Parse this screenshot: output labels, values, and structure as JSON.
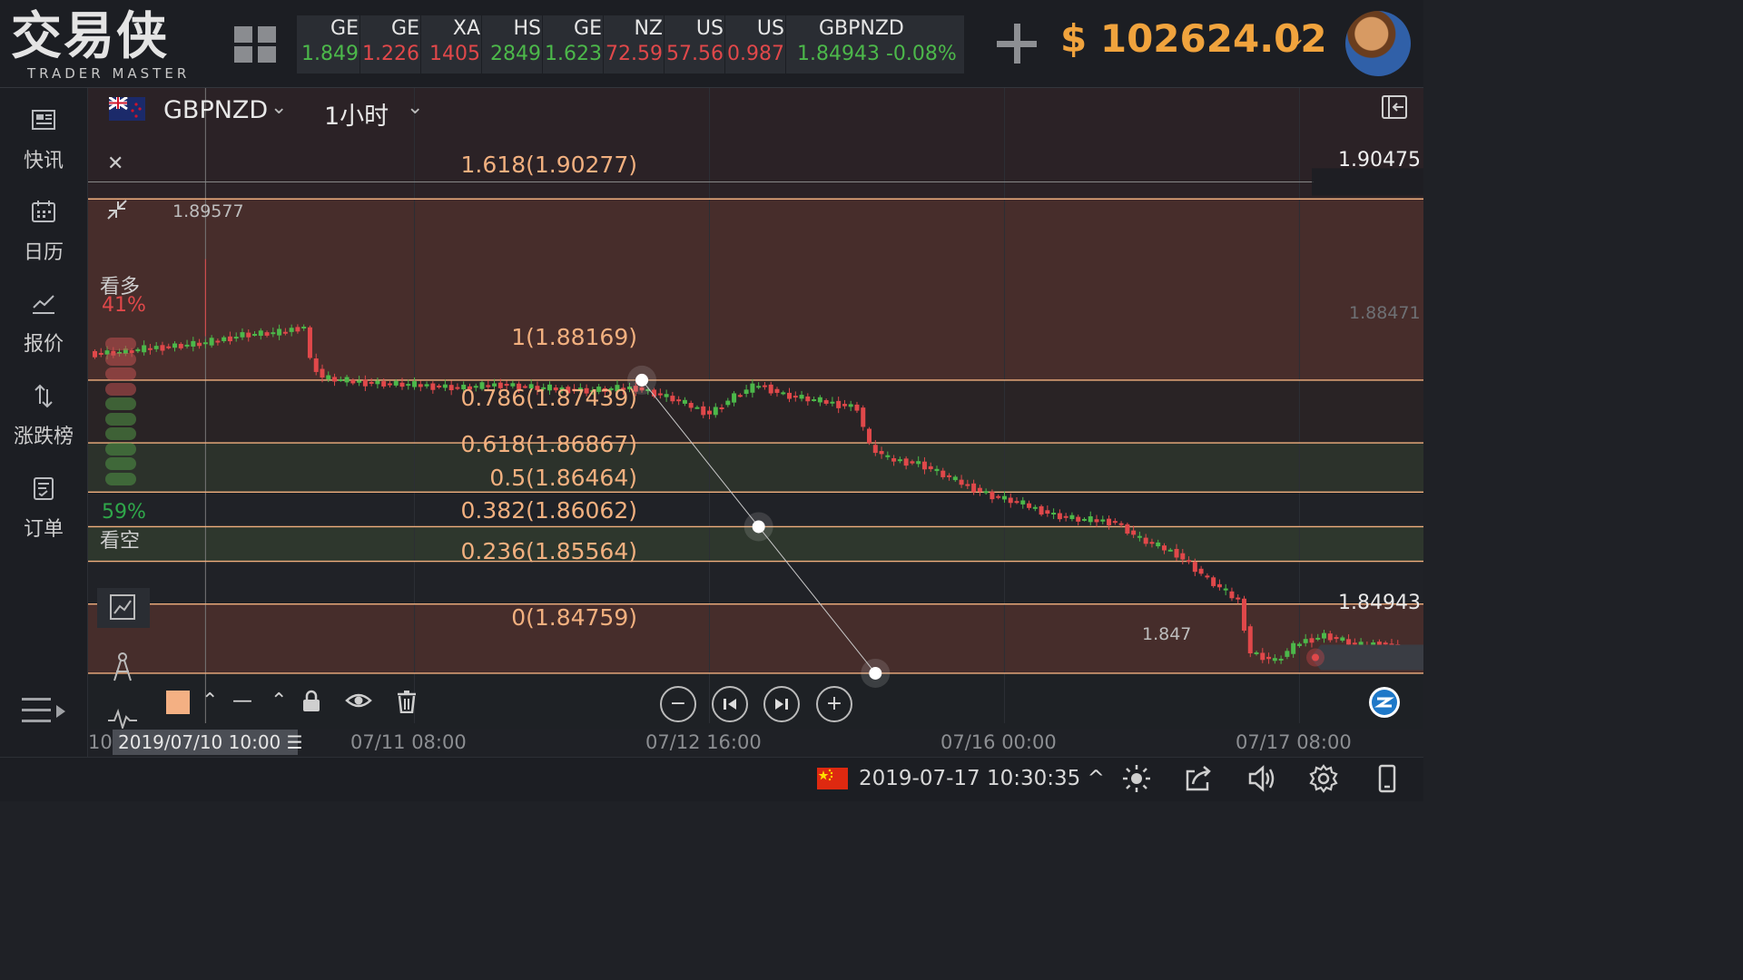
{
  "app": {
    "logo_cn": "交易侠",
    "logo_en": "TRADER MASTER"
  },
  "ticker": [
    {
      "symbol": "GE",
      "price": "1.849",
      "color": "#4cb84a"
    },
    {
      "symbol": "GE",
      "price": "1.226",
      "color": "#e0484a"
    },
    {
      "symbol": "XA",
      "price": "1405",
      "color": "#e0484a"
    },
    {
      "symbol": "HS",
      "price": "2849",
      "color": "#4cb84a"
    },
    {
      "symbol": "GE",
      "price": "1.623",
      "color": "#4cb84a"
    },
    {
      "symbol": "NZ",
      "price": "72.59",
      "color": "#e0484a"
    },
    {
      "symbol": "US",
      "price": "57.56",
      "color": "#e0484a"
    },
    {
      "symbol": "US",
      "price": "0.987",
      "color": "#e0484a"
    },
    {
      "symbol": "GBPNZD",
      "price": "1.84943",
      "change": "-0.08%",
      "color": "#4cb84a"
    }
  ],
  "account": {
    "currency": "$",
    "balance": "102624.02",
    "caret": "⌄"
  },
  "sidebar": {
    "items": [
      {
        "label": "快讯",
        "icon": "news-icon"
      },
      {
        "label": "日历",
        "icon": "calendar-icon"
      },
      {
        "label": "报价",
        "icon": "quote-chart-icon"
      },
      {
        "label": "涨跌榜",
        "icon": "updown-arrows-icon"
      },
      {
        "label": "订单",
        "icon": "order-icon"
      }
    ]
  },
  "chart_header": {
    "symbol": "GBPNZD",
    "timeframe": "1小时",
    "caret": "⌄"
  },
  "chart_data": {
    "type": "candlestick",
    "symbol": "GBPNZD",
    "interval": "1小时",
    "x_ticks": [
      "07/11 08:00",
      "07/12 16:00",
      "07/16 00:00",
      "07/17 08:00"
    ],
    "x_tick_idx": [
      52,
      100,
      148,
      196
    ],
    "cursor_idx": 18,
    "cursor_date": "2019/07/10 10:00",
    "axis_partial_left": "10",
    "ylim": [
      1.84178,
      1.90913
    ],
    "right_labels": {
      "top": "1.90475",
      "mid": "1.88471",
      "current": "1.84943"
    },
    "high_label": "1.89577",
    "low_label": "1.847",
    "fibonacci": {
      "line_color": "#f2b07f",
      "levels": [
        {
          "ratio": "1.618",
          "price": 1.90277,
          "label": "1.618(1.90277)"
        },
        {
          "ratio": "1",
          "price": 1.88169,
          "label": "1(1.88169)"
        },
        {
          "ratio": "0.786",
          "price": 1.87439,
          "label": "0.786(1.87439)"
        },
        {
          "ratio": "0.618",
          "price": 1.86867,
          "label": "0.618(1.86867)"
        },
        {
          "ratio": "0.5",
          "price": 1.86464,
          "label": "0.5(1.86464)"
        },
        {
          "ratio": "0.382",
          "price": 1.86062,
          "label": "0.382(1.86062)"
        },
        {
          "ratio": "0.236",
          "price": 1.85564,
          "label": "0.236(1.85564)"
        },
        {
          "ratio": "0",
          "price": 1.84759,
          "label": "0(1.84759)"
        }
      ],
      "anchor_high": {
        "idx": 89,
        "price": 1.88169
      },
      "anchor_mid": {
        "idx": 108,
        "price": 1.86464
      },
      "anchor_low": {
        "idx": 127,
        "price": 1.84759
      }
    },
    "waypoints": [
      [
        0,
        1.8848
      ],
      [
        5,
        1.885
      ],
      [
        10,
        1.8855
      ],
      [
        18,
        1.886
      ],
      [
        24,
        1.887
      ],
      [
        30,
        1.8872
      ],
      [
        34,
        1.888
      ],
      [
        35,
        1.884
      ],
      [
        37,
        1.882
      ],
      [
        42,
        1.8815
      ],
      [
        50,
        1.8812
      ],
      [
        60,
        1.8808
      ],
      [
        66,
        1.8812
      ],
      [
        72,
        1.8808
      ],
      [
        80,
        1.8805
      ],
      [
        88,
        1.8808
      ],
      [
        94,
        1.8795
      ],
      [
        100,
        1.8778
      ],
      [
        104,
        1.8798
      ],
      [
        108,
        1.8812
      ],
      [
        112,
        1.88
      ],
      [
        116,
        1.8795
      ],
      [
        120,
        1.879
      ],
      [
        124,
        1.8785
      ],
      [
        126,
        1.874
      ],
      [
        129,
        1.8725
      ],
      [
        134,
        1.872
      ],
      [
        140,
        1.87
      ],
      [
        146,
        1.8682
      ],
      [
        150,
        1.8675
      ],
      [
        156,
        1.866
      ],
      [
        160,
        1.8655
      ],
      [
        166,
        1.8652
      ],
      [
        170,
        1.8632
      ],
      [
        176,
        1.8615
      ],
      [
        182,
        1.858
      ],
      [
        186,
        1.856
      ],
      [
        188,
        1.85
      ],
      [
        192,
        1.849
      ],
      [
        196,
        1.8512
      ],
      [
        200,
        1.852
      ],
      [
        206,
        1.8508
      ],
      [
        210,
        1.8512
      ],
      [
        214,
        1.8494
      ]
    ],
    "sentiment": {
      "bull_label": "看多",
      "bull_pct": "41%",
      "bear_label": "看空",
      "bear_pct": "59%"
    },
    "up_color": "#4cb84a",
    "down_color": "#e0484a"
  },
  "chart_controls": {
    "close": "✕",
    "lock_icon": "lock-icon",
    "eye_icon": "eye-icon",
    "delete_icon": "trash-icon",
    "line_style": "—",
    "zoom_out": "−",
    "zoom_in": "+",
    "first": "⏮",
    "last": "⏭",
    "cursor_menu": "☰"
  },
  "status": {
    "datetime": "2019-07-17 10:30:35",
    "caret": "^"
  }
}
